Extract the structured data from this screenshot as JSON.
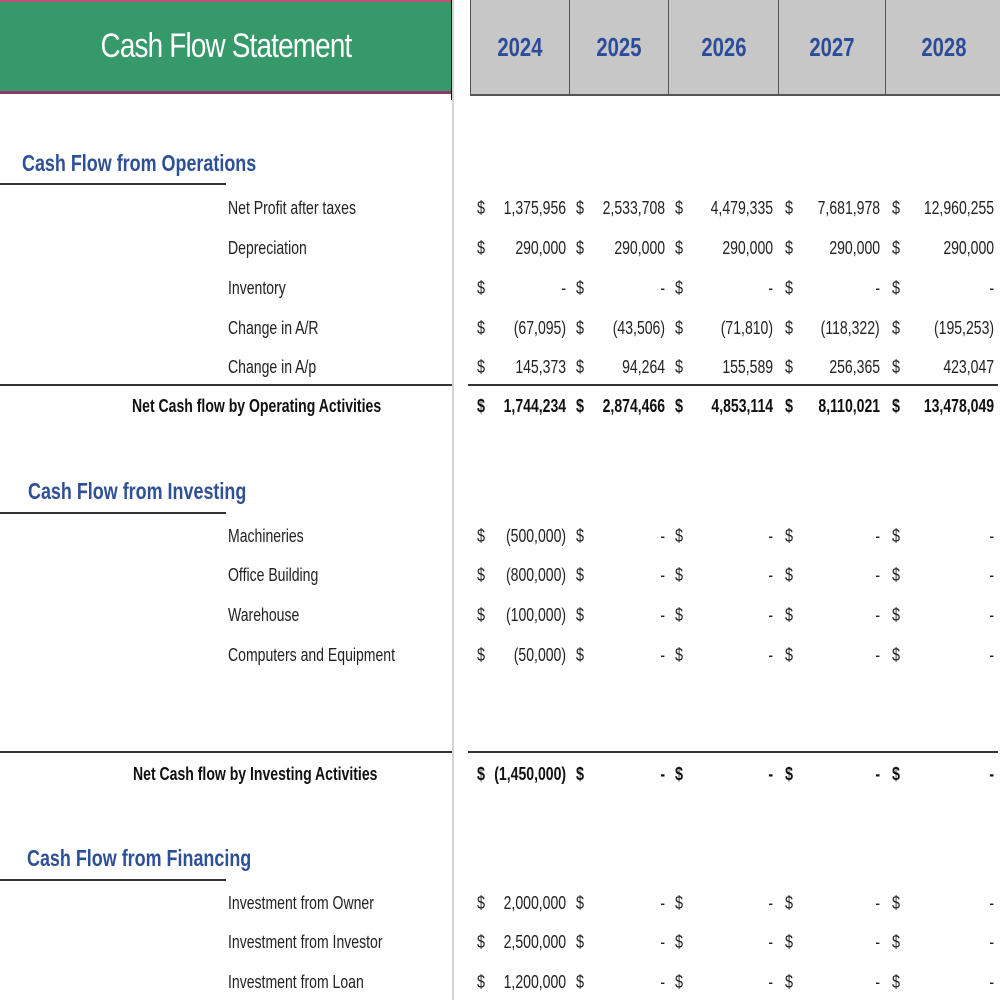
{
  "header": {
    "title": "Cash Flow Statement",
    "years": [
      "2024",
      "2025",
      "2026",
      "2027",
      "2028"
    ]
  },
  "currency_symbol": "$",
  "sections": {
    "operations": {
      "title": "Cash Flow from Operations",
      "rows": [
        {
          "label": "Net Profit after taxes",
          "values": [
            "1,375,956",
            "2,533,708",
            "4,479,335",
            "7,681,978",
            "12,960,255"
          ]
        },
        {
          "label": "Depreciation",
          "values": [
            "290,000",
            "290,000",
            "290,000",
            "290,000",
            "290,000"
          ]
        },
        {
          "label": "Inventory",
          "values": [
            "-",
            "-",
            "-",
            "-",
            "-"
          ]
        },
        {
          "label": "Change in A/R",
          "values": [
            "(67,095)",
            "(43,506)",
            "(71,810)",
            "(118,322)",
            "(195,253)"
          ]
        },
        {
          "label": "Change in A/p",
          "values": [
            "145,373",
            "94,264",
            "155,589",
            "256,365",
            "423,047"
          ]
        }
      ],
      "total": {
        "label": "Net Cash flow by Operating Activities",
        "values": [
          "1,744,234",
          "2,874,466",
          "4,853,114",
          "8,110,021",
          "13,478,049"
        ]
      }
    },
    "investing": {
      "title": "Cash Flow from Investing",
      "rows": [
        {
          "label": "Machineries",
          "values": [
            "(500,000)",
            "-",
            "-",
            "-",
            "-"
          ]
        },
        {
          "label": "Office Building",
          "values": [
            "(800,000)",
            "-",
            "-",
            "-",
            "-"
          ]
        },
        {
          "label": "Warehouse",
          "values": [
            "(100,000)",
            "-",
            "-",
            "-",
            "-"
          ]
        },
        {
          "label": "Computers and Equipment",
          "values": [
            "(50,000)",
            "-",
            "-",
            "-",
            "-"
          ]
        }
      ],
      "total": {
        "label": "Net Cash flow by Investing Activities",
        "values": [
          "(1,450,000)",
          "-",
          "-",
          "-",
          "-"
        ]
      }
    },
    "financing": {
      "title": "Cash Flow from Financing",
      "rows": [
        {
          "label": "Investment from Owner",
          "values": [
            "2,000,000",
            "-",
            "-",
            "-",
            "-"
          ]
        },
        {
          "label": "Investment from Investor",
          "values": [
            "2,500,000",
            "-",
            "-",
            "-",
            "-"
          ]
        },
        {
          "label": "Investment from Loan",
          "values": [
            "1,200,000",
            "-",
            "-",
            "-",
            "-"
          ]
        }
      ]
    }
  },
  "colors": {
    "title_bg": "#35996a",
    "header_bg": "#c7c7c7",
    "section_title": "#2e5097",
    "year_text": "#2b4c9a"
  }
}
